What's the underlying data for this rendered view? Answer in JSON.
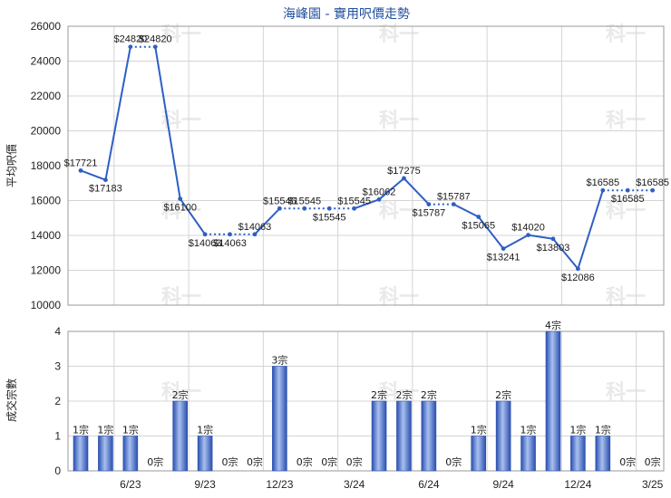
{
  "chart_data": [
    {
      "type": "line",
      "title": "海峰園 - 實用呎價走勢",
      "ylabel": "平均呎價",
      "ylim": [
        10000,
        26000
      ],
      "yticks": [
        10000,
        12000,
        14000,
        16000,
        18000,
        20000,
        22000,
        24000,
        26000
      ],
      "grid": true,
      "value_prefix": "$",
      "points": [
        {
          "x": 0,
          "y": 17721,
          "label": "$17721"
        },
        {
          "x": 1,
          "y": 17183,
          "label": "$17183"
        },
        {
          "x": 2,
          "y": 24820,
          "label": "$24820"
        },
        {
          "x": 3,
          "y": 24820,
          "label": "$24820"
        },
        {
          "x": 4,
          "y": 16100,
          "label": "$16100"
        },
        {
          "x": 5,
          "y": 14063,
          "label": "$14063"
        },
        {
          "x": 6,
          "y": 14063,
          "label": "$14063"
        },
        {
          "x": 7,
          "y": 14063,
          "label": "$14063"
        },
        {
          "x": 8,
          "y": 15545,
          "label": "$15545"
        },
        {
          "x": 9,
          "y": 15545,
          "label": "$15545"
        },
        {
          "x": 10,
          "y": 15545,
          "label": "$15545"
        },
        {
          "x": 11,
          "y": 15545,
          "label": "$15545"
        },
        {
          "x": 12,
          "y": 16062,
          "label": "$16062"
        },
        {
          "x": 13,
          "y": 17275,
          "label": "$17275"
        },
        {
          "x": 14,
          "y": 15787,
          "label": "$15787"
        },
        {
          "x": 15,
          "y": 15787,
          "label": "$15787"
        },
        {
          "x": 16,
          "y": 15065,
          "label": "$15065"
        },
        {
          "x": 17,
          "y": 13241,
          "label": "$13241"
        },
        {
          "x": 18,
          "y": 14020,
          "label": "$14020"
        },
        {
          "x": 19,
          "y": 13803,
          "label": "$13803"
        },
        {
          "x": 20,
          "y": 12086,
          "label": "$12086"
        },
        {
          "x": 21,
          "y": 16585,
          "label": "$16585"
        },
        {
          "x": 22,
          "y": 16585,
          "label": "$16585"
        },
        {
          "x": 23,
          "y": 16585,
          "label": "$16585"
        }
      ],
      "carried_forward_x": [
        3,
        6,
        7,
        9,
        10,
        11,
        15,
        22,
        23
      ]
    },
    {
      "type": "bar",
      "ylabel": "成交宗數",
      "ylim": [
        0,
        4
      ],
      "yticks": [
        0,
        1,
        2,
        3,
        4
      ],
      "grid": true,
      "unit_suffix": "宗",
      "values": [
        1,
        1,
        1,
        0,
        2,
        1,
        0,
        0,
        3,
        0,
        0,
        0,
        2,
        2,
        2,
        0,
        1,
        2,
        1,
        4,
        1,
        1,
        0,
        0
      ],
      "bar_labels": [
        "1宗",
        "1宗",
        "1宗",
        "0宗",
        "2宗",
        "1宗",
        "0宗",
        "0宗",
        "3宗",
        "0宗",
        "0宗",
        "0宗",
        "2宗",
        "2宗",
        "2宗",
        "0宗",
        "1宗",
        "2宗",
        "1宗",
        "4宗",
        "1宗",
        "1宗",
        "0宗",
        "0宗"
      ],
      "xtick_labels": [
        {
          "x": 2,
          "label": "6/23"
        },
        {
          "x": 5,
          "label": "9/23"
        },
        {
          "x": 8,
          "label": "12/23"
        },
        {
          "x": 11,
          "label": "3/24"
        },
        {
          "x": 14,
          "label": "6/24"
        },
        {
          "x": 17,
          "label": "9/24"
        },
        {
          "x": 20,
          "label": "12/24"
        },
        {
          "x": 23,
          "label": "3/25"
        }
      ]
    }
  ],
  "colors": {
    "line": "#2e5fc4",
    "bar_dark": "#2a4fb0",
    "bar_light": "#9fb8ea",
    "grid": "#d4d4d4",
    "title": "#1f4e9e"
  },
  "watermark": "科一"
}
